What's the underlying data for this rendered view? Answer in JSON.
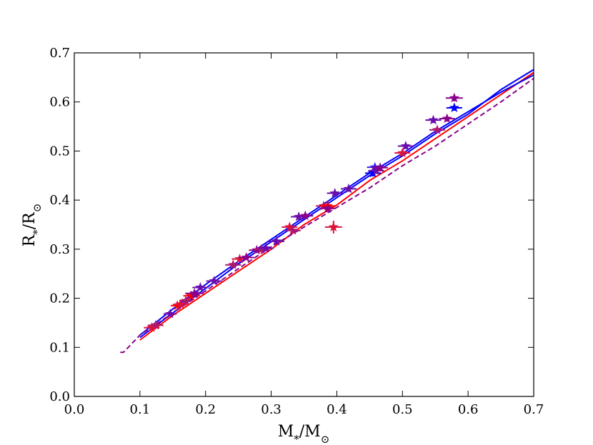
{
  "chart_data": {
    "type": "scatter",
    "title": "",
    "xlabel": "M*/M⊙",
    "ylabel": "R*/R⊙",
    "xlabel_parts": {
      "main": "M",
      "sub": "*",
      "slash": "/M",
      "sub2": "⊙"
    },
    "ylabel_parts": {
      "main": "R",
      "sub": "*",
      "slash": "/R",
      "sub2": "⊙"
    },
    "xlim": [
      0.0,
      0.7
    ],
    "ylim": [
      0.0,
      0.7
    ],
    "xticks": [
      "0.0",
      "0.1",
      "0.2",
      "0.3",
      "0.4",
      "0.5",
      "0.6",
      "0.7"
    ],
    "yticks": [
      "0.0",
      "0.1",
      "0.2",
      "0.3",
      "0.4",
      "0.5",
      "0.6",
      "0.7"
    ],
    "grid": false,
    "colors": {
      "red": "#ff0000",
      "blue": "#0000ff",
      "purple": "#8b008b",
      "crimson": "#dc143c",
      "violet": "#6a0dad"
    },
    "lines": [
      {
        "color": "#ff0000",
        "style": "solid",
        "x": [
          0.1,
          0.15,
          0.2,
          0.25,
          0.3,
          0.35,
          0.4,
          0.45,
          0.5,
          0.55,
          0.6,
          0.65,
          0.7
        ],
        "y": [
          0.115,
          0.165,
          0.21,
          0.255,
          0.3,
          0.35,
          0.39,
          0.44,
          0.48,
          0.525,
          0.57,
          0.615,
          0.66
        ]
      },
      {
        "color": "#0000ff",
        "style": "solid",
        "x": [
          0.1,
          0.15,
          0.2,
          0.25,
          0.3,
          0.35,
          0.4,
          0.45,
          0.5,
          0.55,
          0.6,
          0.65,
          0.7
        ],
        "y": [
          0.12,
          0.17,
          0.22,
          0.27,
          0.315,
          0.36,
          0.405,
          0.45,
          0.49,
          0.535,
          0.575,
          0.625,
          0.666
        ]
      },
      {
        "color": "#0000ff",
        "style": "solid",
        "x": [
          0.1,
          0.15,
          0.2,
          0.25,
          0.3,
          0.35,
          0.4,
          0.45,
          0.5,
          0.55,
          0.6,
          0.65,
          0.7
        ],
        "y": [
          0.125,
          0.178,
          0.228,
          0.275,
          0.32,
          0.365,
          0.41,
          0.455,
          0.495,
          0.54,
          0.58,
          0.62,
          0.655
        ]
      },
      {
        "color": "#8b008b",
        "style": "dashed",
        "x": [
          0.07,
          0.075,
          0.1,
          0.15,
          0.2,
          0.25,
          0.3,
          0.35,
          0.4,
          0.45,
          0.5,
          0.55,
          0.6,
          0.65,
          0.7
        ],
        "y": [
          0.09,
          0.09,
          0.125,
          0.17,
          0.215,
          0.26,
          0.305,
          0.345,
          0.385,
          0.425,
          0.47,
          0.51,
          0.555,
          0.6,
          0.648
        ]
      }
    ],
    "points": [
      {
        "x": 0.118,
        "y": 0.14,
        "xerr": 0.012,
        "yerr": 0.006,
        "color": "#dc143c"
      },
      {
        "x": 0.124,
        "y": 0.145,
        "xerr": 0.012,
        "yerr": 0.006,
        "color": "#b0186e"
      },
      {
        "x": 0.146,
        "y": 0.168,
        "xerr": 0.01,
        "yerr": 0.005,
        "color": "#6a0dad"
      },
      {
        "x": 0.157,
        "y": 0.185,
        "xerr": 0.01,
        "yerr": 0.005,
        "color": "#ff0000"
      },
      {
        "x": 0.162,
        "y": 0.188,
        "xerr": 0.01,
        "yerr": 0.006,
        "color": "#dc143c"
      },
      {
        "x": 0.17,
        "y": 0.195,
        "xerr": 0.01,
        "yerr": 0.006,
        "color": "#b0186e"
      },
      {
        "x": 0.178,
        "y": 0.205,
        "xerr": 0.012,
        "yerr": 0.006,
        "color": "#ff0000"
      },
      {
        "x": 0.183,
        "y": 0.21,
        "xerr": 0.014,
        "yerr": 0.005,
        "color": "#8b008b"
      },
      {
        "x": 0.192,
        "y": 0.222,
        "xerr": 0.012,
        "yerr": 0.005,
        "color": "#6a0dad"
      },
      {
        "x": 0.213,
        "y": 0.235,
        "xerr": 0.012,
        "yerr": 0.005,
        "color": "#6a0dad"
      },
      {
        "x": 0.242,
        "y": 0.268,
        "xerr": 0.012,
        "yerr": 0.006,
        "color": "#b0186e"
      },
      {
        "x": 0.252,
        "y": 0.28,
        "xerr": 0.012,
        "yerr": 0.006,
        "color": "#dc143c"
      },
      {
        "x": 0.262,
        "y": 0.283,
        "xerr": 0.012,
        "yerr": 0.005,
        "color": "#8b008b"
      },
      {
        "x": 0.278,
        "y": 0.298,
        "xerr": 0.012,
        "yerr": 0.006,
        "color": "#8b008b"
      },
      {
        "x": 0.285,
        "y": 0.3,
        "xerr": 0.012,
        "yerr": 0.006,
        "color": "#b0186e"
      },
      {
        "x": 0.292,
        "y": 0.302,
        "xerr": 0.012,
        "yerr": 0.006,
        "color": "#6a0dad"
      },
      {
        "x": 0.308,
        "y": 0.316,
        "xerr": 0.012,
        "yerr": 0.006,
        "color": "#6a0dad"
      },
      {
        "x": 0.328,
        "y": 0.345,
        "xerr": 0.012,
        "yerr": 0.007,
        "color": "#dc143c"
      },
      {
        "x": 0.333,
        "y": 0.338,
        "xerr": 0.012,
        "yerr": 0.006,
        "color": "#b0186e"
      },
      {
        "x": 0.342,
        "y": 0.366,
        "xerr": 0.012,
        "yerr": 0.006,
        "color": "#6a0dad"
      },
      {
        "x": 0.352,
        "y": 0.368,
        "xerr": 0.012,
        "yerr": 0.006,
        "color": "#8b008b"
      },
      {
        "x": 0.38,
        "y": 0.388,
        "xerr": 0.012,
        "yerr": 0.006,
        "color": "#b0186e"
      },
      {
        "x": 0.386,
        "y": 0.388,
        "xerr": 0.012,
        "yerr": 0.01,
        "color": "#ff0000"
      },
      {
        "x": 0.386,
        "y": 0.383,
        "xerr": 0.012,
        "yerr": 0.008,
        "color": "#8b008b"
      },
      {
        "x": 0.395,
        "y": 0.345,
        "xerr": 0.013,
        "yerr": 0.013,
        "color": "#dc143c"
      },
      {
        "x": 0.397,
        "y": 0.414,
        "xerr": 0.012,
        "yerr": 0.006,
        "color": "#6a0dad"
      },
      {
        "x": 0.418,
        "y": 0.423,
        "xerr": 0.012,
        "yerr": 0.006,
        "color": "#6a0dad"
      },
      {
        "x": 0.455,
        "y": 0.455,
        "xerr": 0.012,
        "yerr": 0.007,
        "color": "#0000ff"
      },
      {
        "x": 0.458,
        "y": 0.467,
        "xerr": 0.012,
        "yerr": 0.006,
        "color": "#3a1aee"
      },
      {
        "x": 0.46,
        "y": 0.46,
        "xerr": 0.012,
        "yerr": 0.006,
        "color": "#6a0dad"
      },
      {
        "x": 0.466,
        "y": 0.466,
        "xerr": 0.012,
        "yerr": 0.006,
        "color": "#8b008b"
      },
      {
        "x": 0.5,
        "y": 0.496,
        "xerr": 0.012,
        "yerr": 0.006,
        "color": "#dc143c"
      },
      {
        "x": 0.505,
        "y": 0.51,
        "xerr": 0.012,
        "yerr": 0.006,
        "color": "#6a0dad"
      },
      {
        "x": 0.547,
        "y": 0.563,
        "xerr": 0.012,
        "yerr": 0.006,
        "color": "#6a0dad"
      },
      {
        "x": 0.553,
        "y": 0.543,
        "xerr": 0.012,
        "yerr": 0.007,
        "color": "#b0186e"
      },
      {
        "x": 0.568,
        "y": 0.566,
        "xerr": 0.012,
        "yerr": 0.006,
        "color": "#8b008b"
      },
      {
        "x": 0.579,
        "y": 0.588,
        "xerr": 0.012,
        "yerr": 0.006,
        "color": "#0000ff"
      },
      {
        "x": 0.579,
        "y": 0.608,
        "xerr": 0.013,
        "yerr": 0.007,
        "color": "#8b008b"
      }
    ]
  }
}
